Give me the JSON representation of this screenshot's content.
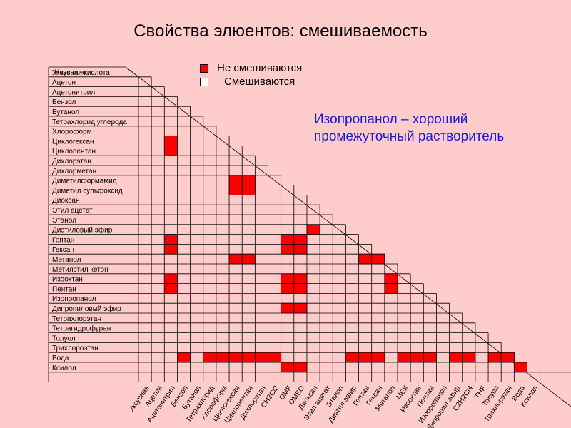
{
  "title": "Свойства элюентов: смешиваемость",
  "legend": {
    "immiscible": "Не смешиваются",
    "miscible": "Смешиваются",
    "immiscible_color": "#ff0000",
    "miscible_color": "#ffffff"
  },
  "note": "Изопропанол – хороший промежуточный растворитель",
  "chart_data": {
    "type": "table",
    "header": "Название",
    "rows": [
      "Уксусная кислота",
      "Ацетон",
      "Ацетонитрил",
      "Бензол",
      "Бутанол",
      "Тетрахлорид углерода",
      "Хлороформ",
      "Циклогексан",
      "Циклопентан",
      "Дихлорэтан",
      "Дихлорметан",
      "Диметилформамид",
      "Диметил сульфоксид",
      "Диоксан",
      "Этил ацетат",
      "Этанол",
      "Диэтиловый эфир",
      "Гептан",
      "Гексан",
      "Метанол",
      "Метилэтил кетон",
      "Изооктан",
      "Пентан",
      "Изопропанол",
      "Дипропиловый эфир",
      "Тетрахлорэтан",
      "Тетрагидрофуран",
      "Толуол",
      "Трихлороэтан",
      "Вода",
      "Ксилол"
    ],
    "columns": [
      "Уксусная",
      "Ацетон",
      "Ацетонитрил",
      "Бензол",
      "Бутанол",
      "Тетрахлорид",
      "Хлороформ",
      "Циклогексан",
      "Циклопентан",
      "Дихлорэтан",
      "CH2Cl2",
      "DMF",
      "DMSO",
      "Диоксан",
      "Этил ацетат",
      "Этанол",
      "Диэтил эфир",
      "Гептан",
      "Гексан",
      "Метанол",
      "МЕК",
      "Изооктан",
      "Пентан",
      "Изопропанол",
      "Дипропил эфир",
      "C2H2Cl4",
      "THF",
      "Толуол",
      "Трихлорэтан",
      "Вода",
      "Ксилол"
    ],
    "immiscible_pairs": [
      [
        "Циклогексан",
        "Ацетонитрил"
      ],
      [
        "Циклопентан",
        "Ацетонитрил"
      ],
      [
        "Диметилформамид",
        "Циклогексан"
      ],
      [
        "Диметилформамид",
        "Циклопентан"
      ],
      [
        "Диметил сульфоксид",
        "Циклогексан"
      ],
      [
        "Диметил сульфоксид",
        "Циклопентан"
      ],
      [
        "Диэтиловый эфир",
        "Диоксан"
      ],
      [
        "Гептан",
        "Ацетонитрил"
      ],
      [
        "Гептан",
        "DMF"
      ],
      [
        "Гептан",
        "DMSO"
      ],
      [
        "Гексан",
        "Ацетонитрил"
      ],
      [
        "Гексан",
        "DMF"
      ],
      [
        "Гексан",
        "DMSO"
      ],
      [
        "Метанол",
        "Циклогексан"
      ],
      [
        "Метанол",
        "Циклопентан"
      ],
      [
        "Метанол",
        "Гептан"
      ],
      [
        "Метанол",
        "Гексан"
      ],
      [
        "Изооктан",
        "Ацетонитрил"
      ],
      [
        "Изооктан",
        "DMF"
      ],
      [
        "Изооктан",
        "DMSO"
      ],
      [
        "Изооктан",
        "Метанол"
      ],
      [
        "Пентан",
        "Ацетонитрил"
      ],
      [
        "Пентан",
        "DMF"
      ],
      [
        "Пентан",
        "DMSO"
      ],
      [
        "Пентан",
        "Метанол"
      ],
      [
        "Дипропиловый эфир",
        "DMF"
      ],
      [
        "Дипропиловый эфир",
        "DMSO"
      ],
      [
        "Вода",
        "Бензол"
      ],
      [
        "Вода",
        "Тетрахлорид"
      ],
      [
        "Вода",
        "Хлороформ"
      ],
      [
        "Вода",
        "Циклогексан"
      ],
      [
        "Вода",
        "Циклопентан"
      ],
      [
        "Вода",
        "Дихлорэтан"
      ],
      [
        "Вода",
        "CH2Cl2"
      ],
      [
        "Вода",
        "Диэтил эфир"
      ],
      [
        "Вода",
        "Гептан"
      ],
      [
        "Вода",
        "Гексан"
      ],
      [
        "Вода",
        "МЕК"
      ],
      [
        "Вода",
        "Изооктан"
      ],
      [
        "Вода",
        "Пентан"
      ],
      [
        "Вода",
        "Дипропил эфир"
      ],
      [
        "Вода",
        "C2H2Cl4"
      ],
      [
        "Вода",
        "Толуол"
      ],
      [
        "Вода",
        "Трихлорэтан"
      ],
      [
        "Ксилол",
        "DMF"
      ],
      [
        "Ксилол",
        "DMSO"
      ],
      [
        "Ксилол",
        "Вода"
      ]
    ]
  }
}
